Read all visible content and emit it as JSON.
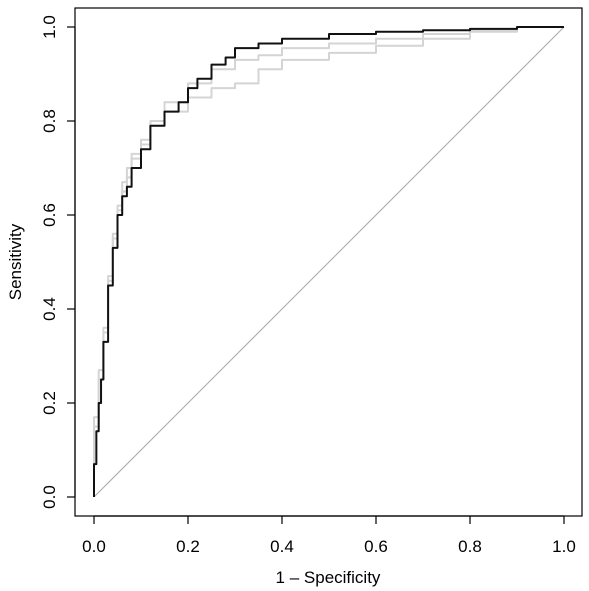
{
  "chart_data": {
    "type": "line",
    "title": "",
    "xlabel": "1 – Specificity",
    "ylabel": "Sensitivity",
    "xlim": [
      0,
      1
    ],
    "ylim": [
      0,
      1
    ],
    "x_ticks": [
      "0.0",
      "0.2",
      "0.4",
      "0.6",
      "0.8",
      "1.0"
    ],
    "y_ticks": [
      "0.0",
      "0.2",
      "0.4",
      "0.6",
      "0.8",
      "1.0"
    ],
    "grid": false,
    "legend": "none",
    "colors": {
      "main": "#111111",
      "secondary": "#d4d4d4",
      "reference": "#a8a8a8"
    },
    "series": [
      {
        "role": "main",
        "x": [
          0,
          0.005,
          0.01,
          0.015,
          0.02,
          0.03,
          0.04,
          0.05,
          0.06,
          0.07,
          0.08,
          0.1,
          0.12,
          0.15,
          0.18,
          0.2,
          0.22,
          0.25,
          0.28,
          0.3,
          0.35,
          0.4,
          0.5,
          0.6,
          0.7,
          0.8,
          0.9,
          1.0
        ],
        "y": [
          0,
          0.07,
          0.14,
          0.2,
          0.25,
          0.33,
          0.45,
          0.53,
          0.6,
          0.64,
          0.66,
          0.7,
          0.74,
          0.79,
          0.82,
          0.84,
          0.87,
          0.89,
          0.92,
          0.935,
          0.955,
          0.965,
          0.975,
          0.985,
          0.99,
          0.993,
          0.996,
          1.0
        ]
      },
      {
        "role": "secondary",
        "x": [
          0,
          0.01,
          0.02,
          0.03,
          0.04,
          0.05,
          0.06,
          0.07,
          0.08,
          0.1,
          0.12,
          0.15,
          0.2,
          0.25,
          0.3,
          0.35,
          0.4,
          0.5,
          0.6,
          0.7,
          0.8,
          0.9,
          1.0
        ],
        "y": [
          0,
          0.17,
          0.27,
          0.36,
          0.47,
          0.56,
          0.62,
          0.67,
          0.7,
          0.73,
          0.76,
          0.8,
          0.84,
          0.88,
          0.91,
          0.93,
          0.94,
          0.955,
          0.965,
          0.975,
          0.985,
          0.993,
          1.0
        ]
      },
      {
        "role": "secondary",
        "x": [
          0,
          0.01,
          0.02,
          0.03,
          0.04,
          0.05,
          0.06,
          0.07,
          0.08,
          0.1,
          0.12,
          0.15,
          0.2,
          0.25,
          0.3,
          0.35,
          0.4,
          0.5,
          0.6,
          0.7,
          0.8,
          0.9,
          1.0
        ],
        "y": [
          0,
          0.15,
          0.25,
          0.35,
          0.46,
          0.55,
          0.61,
          0.65,
          0.68,
          0.72,
          0.75,
          0.79,
          0.82,
          0.85,
          0.87,
          0.88,
          0.91,
          0.93,
          0.945,
          0.96,
          0.975,
          0.99,
          1.0
        ]
      },
      {
        "role": "reference",
        "x": [
          0,
          1
        ],
        "y": [
          0,
          1
        ]
      }
    ]
  }
}
